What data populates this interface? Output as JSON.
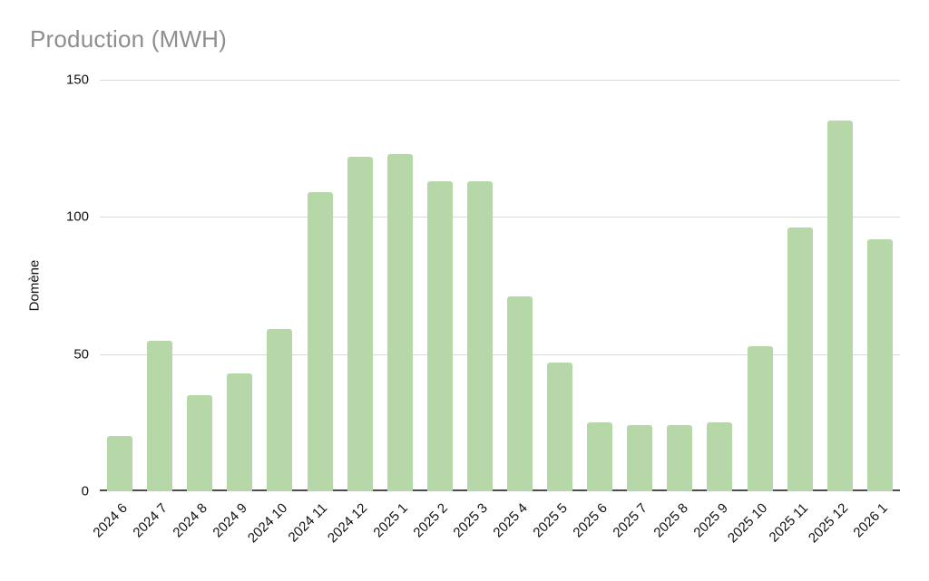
{
  "chart_data": {
    "type": "bar",
    "title": "Production (MWH)",
    "xlabel": "",
    "ylabel": "Domène",
    "categories": [
      "2024 6",
      "2024 7",
      "2024 8",
      "2024 9",
      "2024 10",
      "2024 11",
      "2024 12",
      "2025 1",
      "2025 2",
      "2025 3",
      "2025 4",
      "2025 5",
      "2025 6",
      "2025 7",
      "2025 8",
      "2025 9",
      "2025 10",
      "2025 11",
      "2025 12",
      "2026 1"
    ],
    "values": [
      20,
      55,
      35,
      43,
      59,
      109,
      122,
      123,
      113,
      113,
      71,
      47,
      25,
      24,
      24,
      25,
      53,
      96,
      135,
      92
    ],
    "ylim": [
      0,
      150
    ],
    "yticks": [
      0,
      50,
      100,
      150
    ],
    "grid": true,
    "legend": "none",
    "colors": {
      "bar": "#b6d7a8",
      "title_text": "#8e8e8e",
      "axis_text": "#111111",
      "gridline": "#d9d9d9",
      "baseline": "#4d4d4d",
      "background": "#ffffff"
    }
  }
}
